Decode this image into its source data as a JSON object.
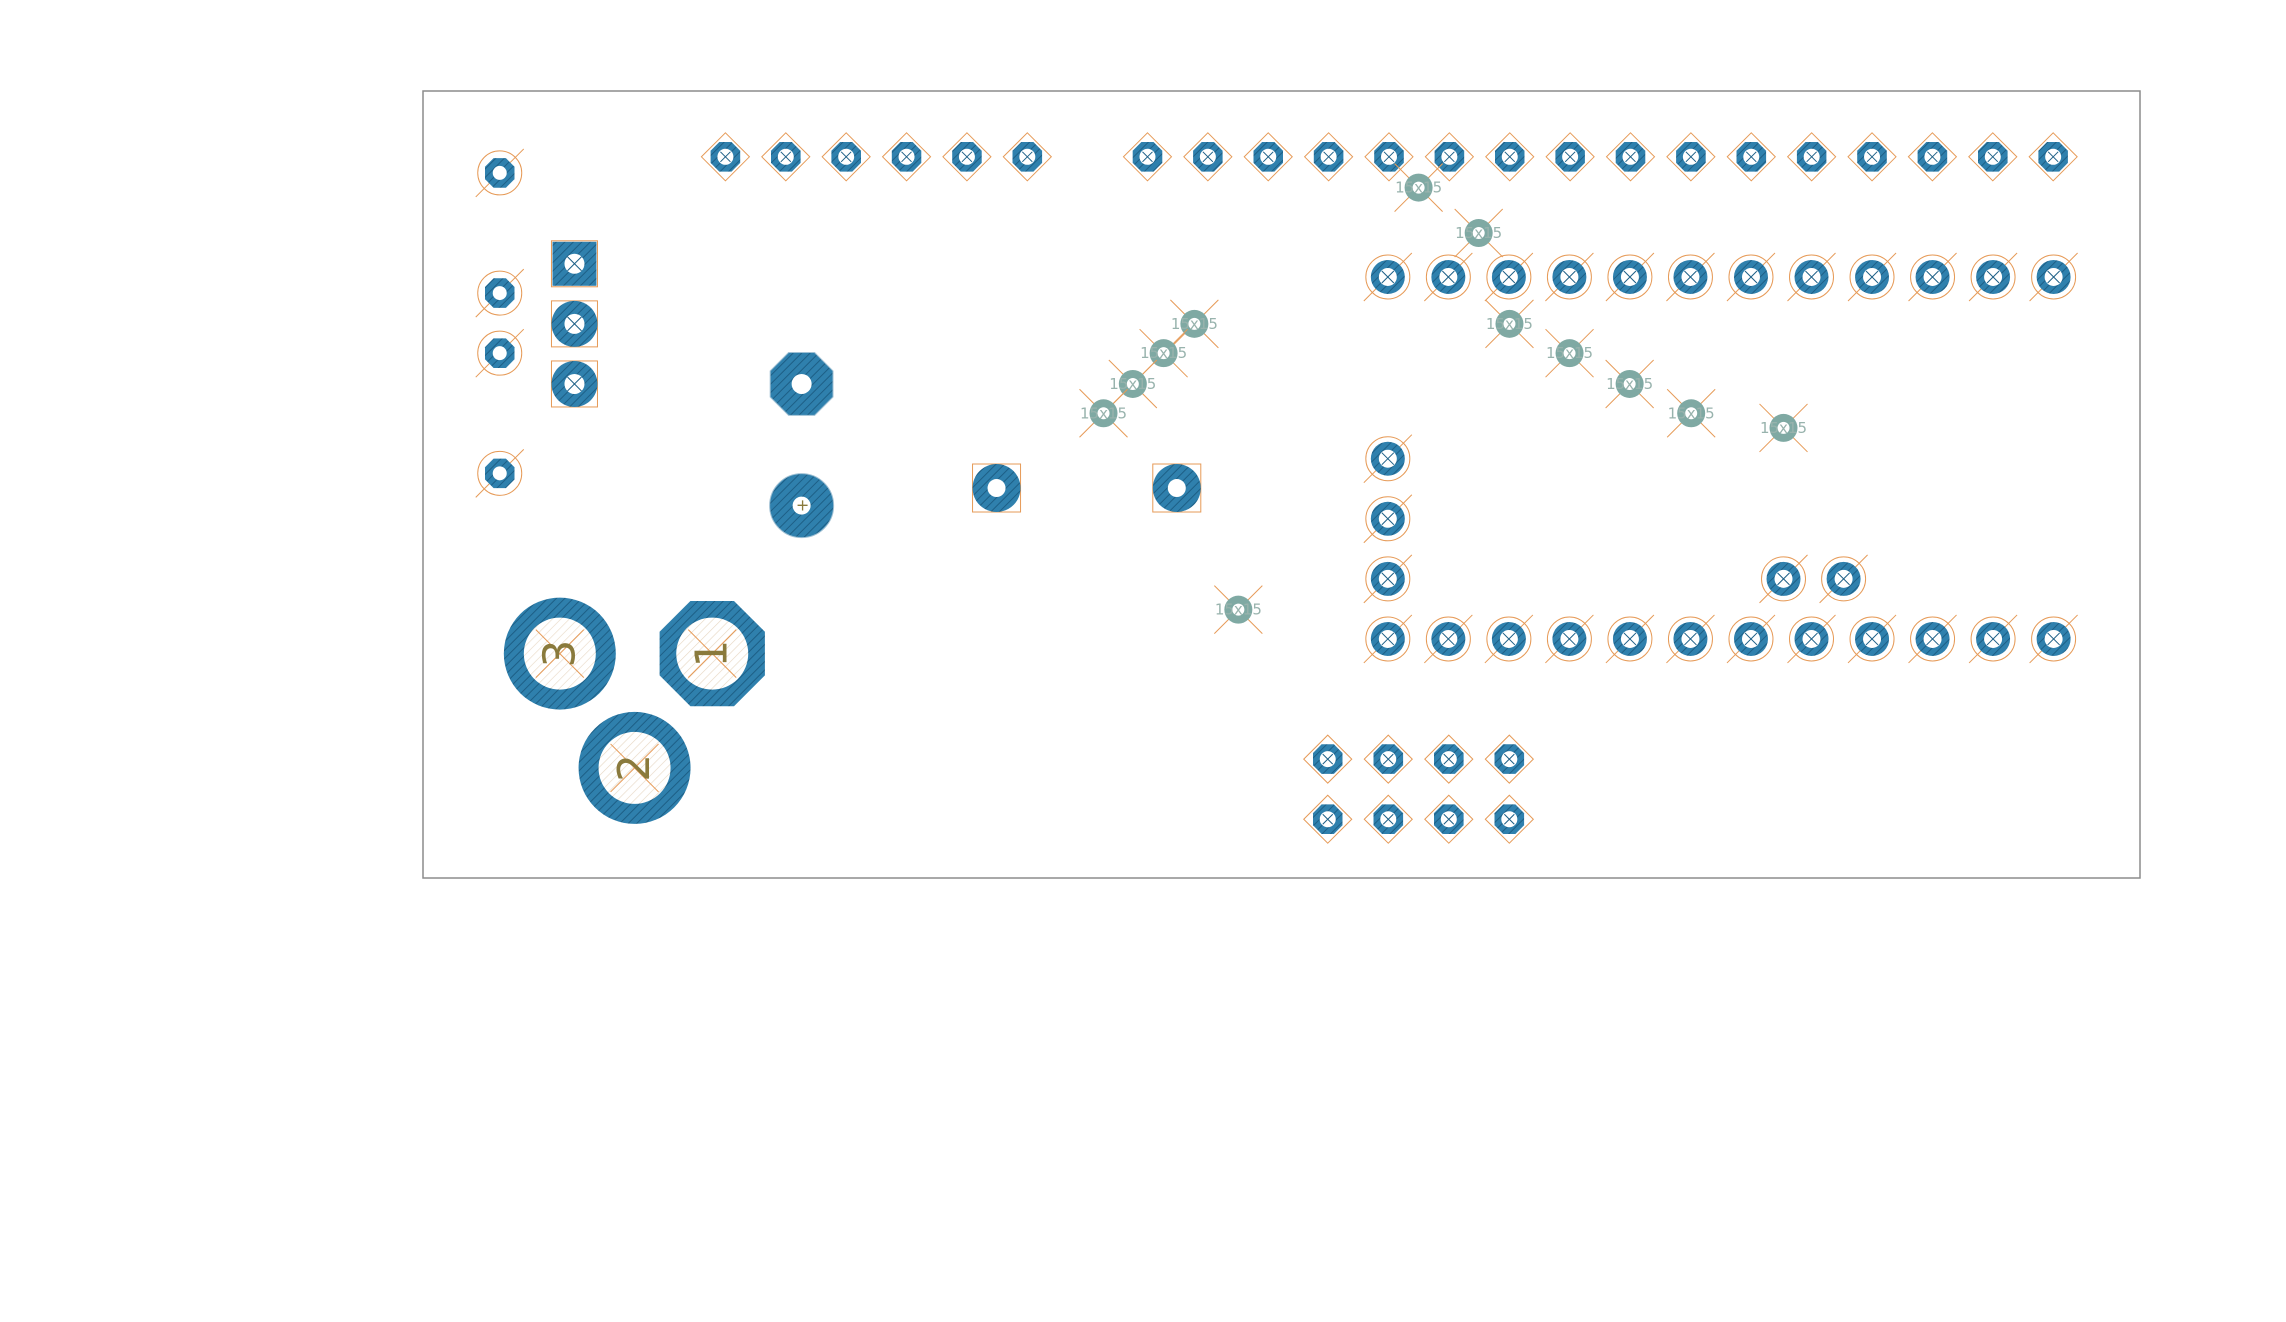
{
  "title": "",
  "colors": {
    "background": "#ffffff",
    "board_outline": "#8c8c8c",
    "pad_copper": "#2f80ad",
    "pad_hatch": "#1d5f86",
    "via_copper": "#7fa9a3",
    "drill_white": "#ffffff",
    "silk_orange": "#e69a57",
    "label_olive": "#8a7a3c",
    "via_label": "#98b3ad"
  },
  "board": {
    "via_label": "15x15",
    "power_pads": [
      {
        "id": "pad-3",
        "label": "3",
        "shape": "round"
      },
      {
        "id": "pad-1",
        "label": "1",
        "shape": "octagon"
      },
      {
        "id": "pad-2",
        "label": "2",
        "shape": "round"
      }
    ],
    "plus_label": "+",
    "pin_groups": [
      {
        "name": "left-column-pins",
        "count": 4
      },
      {
        "name": "square-header",
        "count": 3
      },
      {
        "name": "top-header-short",
        "count": 6
      },
      {
        "name": "top-header-long",
        "count": 16
      },
      {
        "name": "upper-dip-row",
        "count": 12
      },
      {
        "name": "lower-dip-row",
        "count": 12
      },
      {
        "name": "side-column-pins",
        "count": 3
      },
      {
        "name": "pair-pins",
        "count": 2
      },
      {
        "name": "bottom-header",
        "count": 8
      }
    ]
  }
}
